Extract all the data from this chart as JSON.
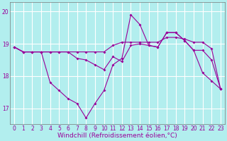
{
  "xlabel": "Windchill (Refroidissement éolien,°C)",
  "background_color": "#b2eeee",
  "grid_color": "#ffffff",
  "line_color": "#990099",
  "x": [
    0,
    1,
    2,
    3,
    4,
    5,
    6,
    7,
    8,
    9,
    10,
    11,
    12,
    13,
    14,
    15,
    16,
    17,
    18,
    19,
    20,
    21,
    22,
    23
  ],
  "line1": [
    18.9,
    18.75,
    18.75,
    18.75,
    18.75,
    18.75,
    18.75,
    18.75,
    18.75,
    18.75,
    18.75,
    18.95,
    19.05,
    19.05,
    19.05,
    19.05,
    19.05,
    19.2,
    19.2,
    19.15,
    19.05,
    19.05,
    18.85,
    17.6
  ],
  "line2": [
    18.9,
    18.75,
    18.75,
    18.75,
    17.8,
    17.55,
    17.3,
    17.15,
    16.7,
    17.15,
    17.55,
    18.35,
    18.55,
    19.9,
    19.6,
    18.95,
    18.9,
    19.35,
    19.35,
    19.1,
    18.8,
    18.1,
    17.85,
    17.6
  ],
  "line3": [
    18.9,
    18.75,
    18.75,
    18.75,
    18.75,
    18.75,
    18.75,
    18.55,
    18.5,
    18.35,
    18.2,
    18.6,
    18.45,
    18.95,
    19.0,
    18.95,
    18.9,
    19.35,
    19.35,
    19.1,
    18.8,
    18.8,
    18.5,
    17.6
  ],
  "ylim": [
    16.5,
    20.3
  ],
  "yticks": [
    17,
    18,
    19,
    20
  ],
  "xticks": [
    0,
    1,
    2,
    3,
    4,
    5,
    6,
    7,
    8,
    9,
    10,
    11,
    12,
    13,
    14,
    15,
    16,
    17,
    18,
    19,
    20,
    21,
    22,
    23
  ],
  "tick_fontsize": 5.5,
  "label_fontsize": 6.5,
  "marker": "D",
  "marker_size": 2.0,
  "line_width": 0.8
}
